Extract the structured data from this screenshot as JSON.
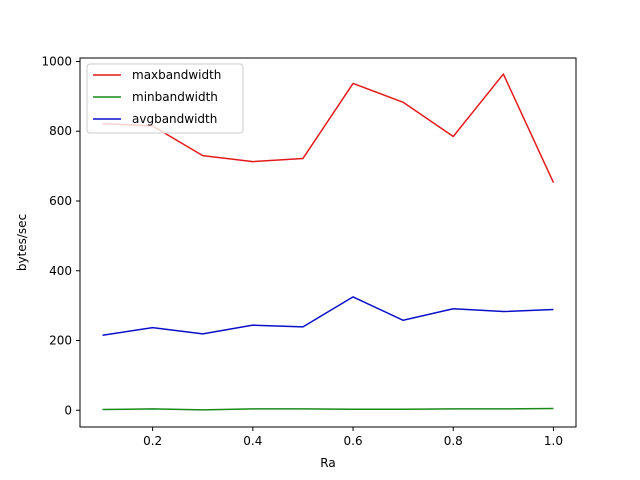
{
  "chart_data": {
    "type": "line",
    "title": "",
    "xlabel": "Ra",
    "ylabel": "bytes/sec",
    "xlim": [
      0.055,
      1.045
    ],
    "ylim": [
      -48,
      1010
    ],
    "xticks": [
      0.2,
      0.4,
      0.6,
      0.8,
      1.0
    ],
    "xtick_labels": [
      "0.2",
      "0.4",
      "0.6",
      "0.8",
      "1.0"
    ],
    "yticks": [
      0,
      200,
      400,
      600,
      800,
      1000
    ],
    "ytick_labels": [
      "0",
      "200",
      "400",
      "600",
      "800",
      "1000"
    ],
    "grid": false,
    "legend_position": "top-left",
    "x": [
      0.1,
      0.2,
      0.3,
      0.4,
      0.5,
      0.6,
      0.7,
      0.8,
      0.9,
      1.0
    ],
    "series": [
      {
        "name": "maxbandwidth",
        "color": "#e31a1c",
        "values": [
          822,
          815,
          730,
          713,
          722,
          937,
          883,
          785,
          964,
          653
        ]
      },
      {
        "name": "minbandwidth",
        "color": "#1a8a1a",
        "values": [
          2,
          4,
          1,
          4,
          4,
          3,
          3,
          4,
          4,
          5
        ]
      },
      {
        "name": "avgbandwidth",
        "color": "#0a10c8",
        "values": [
          215,
          237,
          219,
          244,
          239,
          325,
          258,
          291,
          283,
          289
        ]
      }
    ]
  }
}
